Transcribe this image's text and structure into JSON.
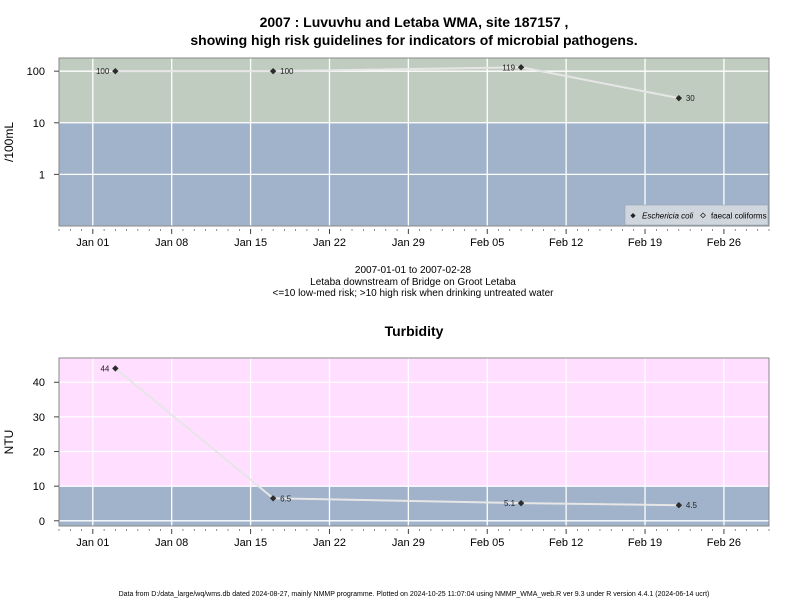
{
  "chart_data": [
    {
      "type": "line",
      "title_line1": "2007 : Luvuvhu and Letaba WMA, site 187157 ,",
      "title_line2": "showing high risk guidelines for indicators of microbial pathogens.",
      "ylabel": "/100mL",
      "yscale": "log",
      "ylim": [
        0.1,
        180
      ],
      "yticks": [
        "1",
        "10",
        "100"
      ],
      "ytick_values": [
        1,
        10,
        100
      ],
      "xlim": [
        "2006-12-29",
        "2007-03-02"
      ],
      "xticks": [
        "Jan 01",
        "Jan 08",
        "Jan 15",
        "Jan 22",
        "Jan 29",
        "Feb 05",
        "Feb 12",
        "Feb 19",
        "Feb 26"
      ],
      "xtick_dates": [
        "2007-01-01",
        "2007-01-08",
        "2007-01-15",
        "2007-01-22",
        "2007-01-29",
        "2007-02-05",
        "2007-02-12",
        "2007-02-19",
        "2007-02-26"
      ],
      "bands": [
        {
          "from": 10,
          "to": 180,
          "color": "#c1ccc0"
        },
        {
          "from": 0.1,
          "to": 10,
          "color": "#a1b2cb"
        }
      ],
      "series": [
        {
          "name": "Eschericia coli",
          "marker": "filled",
          "points": [
            {
              "x": "2007-01-03",
              "y": 100,
              "label": "100",
              "label_side": "left"
            },
            {
              "x": "2007-01-17",
              "y": 100,
              "label": "100",
              "label_side": "right"
            },
            {
              "x": "2007-02-08",
              "y": 119,
              "label": "119",
              "label_side": "left"
            },
            {
              "x": "2007-02-22",
              "y": 30,
              "label": "30",
              "label_side": "right"
            }
          ]
        }
      ],
      "legend": {
        "position": "bottom-right",
        "items": [
          {
            "label": "Eschericia coli",
            "marker": "filled",
            "italic": true
          },
          {
            "label": "faecal coliforms",
            "marker": "open",
            "italic": false
          }
        ]
      },
      "caption": [
        "2007-01-01 to 2007-02-28",
        "Letaba downstream of Bridge on Groot Letaba",
        "<=10 low-med risk; >10 high risk when drinking untreated water"
      ]
    },
    {
      "type": "line",
      "title": "Turbidity",
      "ylabel": "NTU",
      "ylim": [
        -1.5,
        47
      ],
      "yticks": [
        "0",
        "10",
        "20",
        "30",
        "40"
      ],
      "ytick_values": [
        0,
        10,
        20,
        30,
        40
      ],
      "xlim": [
        "2006-12-29",
        "2007-03-02"
      ],
      "xticks": [
        "Jan 01",
        "Jan 08",
        "Jan 15",
        "Jan 22",
        "Jan 29",
        "Feb 05",
        "Feb 12",
        "Feb 19",
        "Feb 26"
      ],
      "xtick_dates": [
        "2007-01-01",
        "2007-01-08",
        "2007-01-15",
        "2007-01-22",
        "2007-01-29",
        "2007-02-05",
        "2007-02-12",
        "2007-02-19",
        "2007-02-26"
      ],
      "bands": [
        {
          "from": 10,
          "to": 47,
          "color": "#ffdeff"
        },
        {
          "from": -1.5,
          "to": 10,
          "color": "#a1b2cb"
        }
      ],
      "series": [
        {
          "name": "",
          "marker": "filled",
          "points": [
            {
              "x": "2007-01-03",
              "y": 44,
              "label": "44",
              "label_side": "left"
            },
            {
              "x": "2007-01-17",
              "y": 6.5,
              "label": "6.5",
              "label_side": "right"
            },
            {
              "x": "2007-02-08",
              "y": 5.1,
              "label": "5.1",
              "label_side": "left"
            },
            {
              "x": "2007-02-22",
              "y": 4.5,
              "label": "4.5",
              "label_side": "right"
            }
          ]
        }
      ]
    }
  ],
  "footer": "Data from D:/data_large/wq/wms.db dated 2024-08-27, mainly NMMP programme. Plotted on 2024-10-25 11:07:04 using NMMP_WMA_web.R ver 9.3 under R version 4.4.1 (2024-06-14 ucrt)"
}
